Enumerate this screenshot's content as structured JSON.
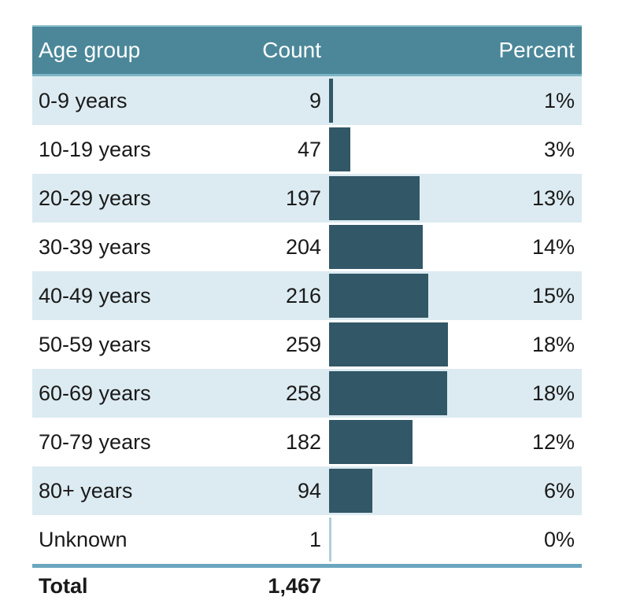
{
  "table": {
    "columns": [
      "Age group",
      "Count",
      "Percent"
    ]
  },
  "total": {
    "label": "Total",
    "count": "1,467"
  },
  "chart_data": {
    "type": "bar",
    "orientation": "horizontal",
    "title": "",
    "categories": [
      "0-9 years",
      "10-19 years",
      "20-29 years",
      "30-39 years",
      "40-49 years",
      "50-59 years",
      "60-69 years",
      "70-79 years",
      "80+ years",
      "Unknown"
    ],
    "series": [
      {
        "name": "Count",
        "values": [
          9,
          47,
          197,
          204,
          216,
          259,
          258,
          182,
          94,
          1
        ]
      },
      {
        "name": "Percent",
        "values": [
          "1%",
          "3%",
          "13%",
          "14%",
          "15%",
          "18%",
          "18%",
          "12%",
          "6%",
          "0%"
        ]
      }
    ],
    "total_count": 1467,
    "max_count": 259,
    "legend": "none",
    "grid": false
  },
  "colors": {
    "header_bg": "#4b8799",
    "header_text": "#ffffff",
    "row_alt_bg": "#dcebf1",
    "row_bg": "#ffffff",
    "bar": "#325767",
    "bar_axis_line": "#b3cdd9",
    "total_separator": "#6ba6bf",
    "text": "#1a1a1a"
  }
}
